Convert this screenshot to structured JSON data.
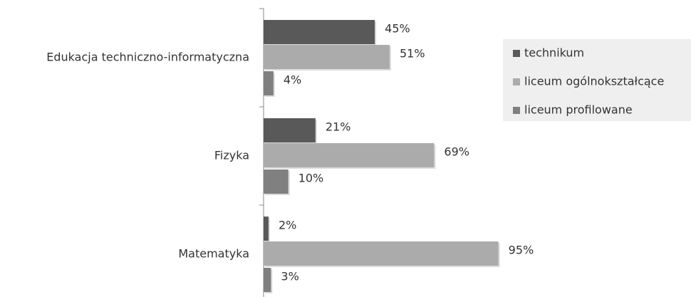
{
  "chart_data": {
    "type": "bar",
    "orientation": "horizontal",
    "categories": [
      "Edukacja techniczno-informatyczna",
      "Fizyka",
      "Matematyka"
    ],
    "series": [
      {
        "name": "technikum",
        "color": "#595959",
        "values": [
          45,
          21,
          2
        ],
        "value_labels": [
          "45%",
          "21%",
          "2%"
        ]
      },
      {
        "name": "liceum ogólnokształcące",
        "color": "#ababab",
        "values": [
          51,
          69,
          95
        ],
        "value_labels": [
          "51%",
          "69%",
          "95%"
        ]
      },
      {
        "name": "liceum profilowane",
        "color": "#808080",
        "values": [
          4,
          10,
          3
        ],
        "value_labels": [
          "4%",
          "10%",
          "3%"
        ]
      }
    ],
    "legend": "right"
  }
}
